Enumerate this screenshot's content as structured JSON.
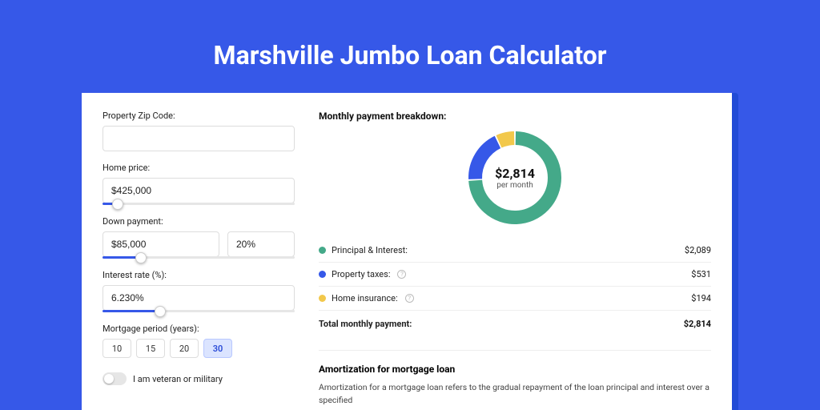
{
  "page": {
    "title": "Marshville Jumbo Loan Calculator",
    "background_color": "#3658e8",
    "card_shadow_color": "#214bd6"
  },
  "form": {
    "zip": {
      "label": "Property Zip Code:",
      "value": ""
    },
    "home_price": {
      "label": "Home price:",
      "value": "$425,000",
      "slider_pct": 8
    },
    "down_payment": {
      "label": "Down payment:",
      "value": "$85,000",
      "pct_value": "20%",
      "slider_pct": 20
    },
    "interest_rate": {
      "label": "Interest rate (%):",
      "value": "6.230%",
      "slider_pct": 30
    },
    "mortgage_period": {
      "label": "Mortgage period (years):",
      "options": [
        "10",
        "15",
        "20",
        "30"
      ],
      "selected": "30"
    },
    "veteran": {
      "label": "I am veteran or military",
      "checked": false
    }
  },
  "breakdown": {
    "title": "Monthly payment breakdown:",
    "donut": {
      "amount": "$2,814",
      "sub": "per month",
      "series": [
        {
          "label": "Principal & Interest",
          "value": 2089,
          "color": "#44a989",
          "pct": 74.2
        },
        {
          "label": "Property taxes",
          "value": 531,
          "color": "#3658e8",
          "pct": 18.9
        },
        {
          "label": "Home insurance",
          "value": 194,
          "color": "#f2c84b",
          "pct": 6.9
        }
      ],
      "thickness": 17
    },
    "rows": [
      {
        "label": "Principal & Interest:",
        "value": "$2,089",
        "color": "#44a989",
        "info": false
      },
      {
        "label": "Property taxes:",
        "value": "$531",
        "color": "#3658e8",
        "info": true
      },
      {
        "label": "Home insurance:",
        "value": "$194",
        "color": "#f2c84b",
        "info": true
      }
    ],
    "total": {
      "label": "Total monthly payment:",
      "value": "$2,814"
    }
  },
  "amortization": {
    "title": "Amortization for mortgage loan",
    "text": "Amortization for a mortgage loan refers to the gradual repayment of the loan principal and interest over a specified"
  }
}
